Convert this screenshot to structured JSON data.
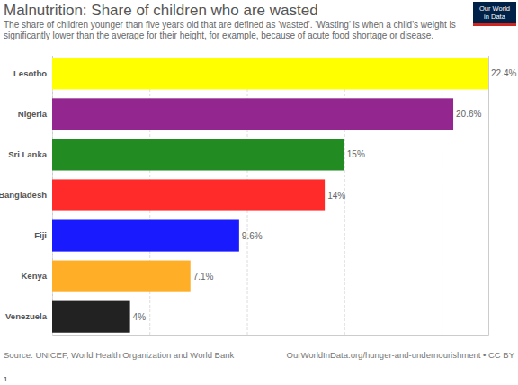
{
  "chart_data": {
    "type": "bar",
    "orientation": "horizontal",
    "title": "Malnutrition: Share of children who are wasted",
    "subtitle": "The share of children younger than five years old that are defined as 'wasted'. 'Wasting' is when a child's weight is significantly lower than the average for their height, for example, because of acute food shortage or disease.",
    "categories": [
      "Lesotho",
      "Nigeria",
      "Sri Lanka",
      "Bangladesh",
      "Fiji",
      "Kenya",
      "Venezuela"
    ],
    "values": [
      22.4,
      20.6,
      15,
      14,
      9.6,
      7.1,
      4
    ],
    "value_labels": [
      "22.4%",
      "20.6%",
      "15%",
      "14%",
      "9.6%",
      "7.1%",
      "4%"
    ],
    "colors": [
      "#ffff00",
      "#93278f",
      "#228b22",
      "#ff2a2a",
      "#1a1aff",
      "#ffae27",
      "#222222"
    ],
    "xlim": [
      0,
      22.4
    ],
    "xticks": [
      0,
      5,
      10,
      15,
      20
    ],
    "grid": true,
    "data_labels": true,
    "tick_labels": "y",
    "source": "Source: UNICEF, World Health Organization and World Bank",
    "url": "OurWorldInData.org/hunger-and-undernourishment • CC BY",
    "logo": [
      "Our World",
      "in Data"
    ],
    "note": "1"
  }
}
